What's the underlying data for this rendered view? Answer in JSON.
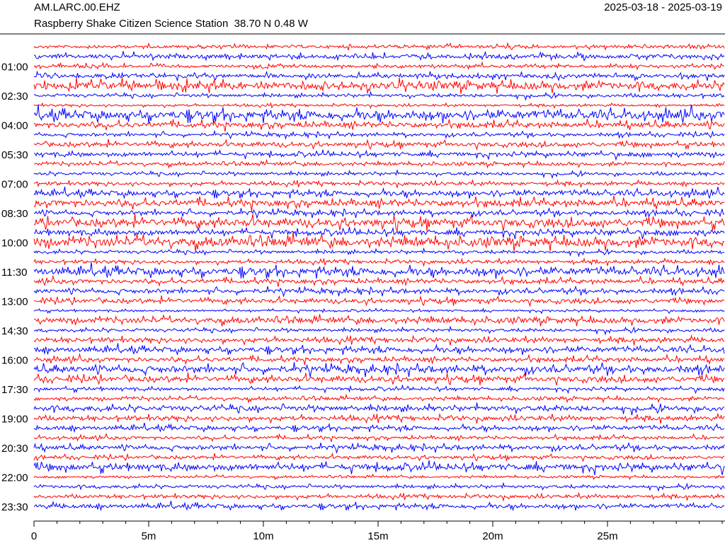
{
  "chart_data": {
    "type": "helicorder",
    "title": "AM.LARC.00.EHZ",
    "subtitle": "Raspberry Shake Citizen Science Station  38.70 N 0.48 W",
    "date_range": "2025-03-18 - 2025-03-19",
    "xlim": [
      0,
      30
    ],
    "xticks": [
      0,
      {
        "value": 5,
        "label": "5m"
      },
      {
        "value": 10,
        "label": "10m"
      },
      {
        "value": 15,
        "label": "15m"
      },
      {
        "value": 20,
        "label": "20m"
      },
      {
        "value": 25,
        "label": "25m"
      }
    ],
    "xminor_step": 1,
    "ylim": [
      0,
      1410
    ],
    "yticks": [
      {
        "value": 60,
        "label": "01:00"
      },
      {
        "value": 150,
        "label": "02:30"
      },
      {
        "value": 240,
        "label": "04:00"
      },
      {
        "value": 330,
        "label": "05:30"
      },
      {
        "value": 420,
        "label": "07:00"
      },
      {
        "value": 510,
        "label": "08:30"
      },
      {
        "value": 600,
        "label": "10:00"
      },
      {
        "value": 690,
        "label": "11:30"
      },
      {
        "value": 780,
        "label": "13:00"
      },
      {
        "value": 870,
        "label": "14:30"
      },
      {
        "value": 960,
        "label": "16:00"
      },
      {
        "value": 1050,
        "label": "17:30"
      },
      {
        "value": 1140,
        "label": "19:00"
      },
      {
        "value": 1230,
        "label": "20:30"
      },
      {
        "value": 1320,
        "label": "22:00"
      },
      {
        "value": 1410,
        "label": "23:30"
      }
    ],
    "colors": [
      "#ff0000",
      "#0000ff"
    ],
    "traces": {
      "start": [
        0,
        30,
        60,
        90,
        120,
        150,
        180,
        210,
        240,
        270,
        300,
        330,
        360,
        390,
        420,
        450,
        480,
        510,
        540,
        570,
        600,
        630,
        660,
        690,
        720,
        750,
        780,
        810,
        840,
        870,
        900,
        930,
        960,
        990,
        1020,
        1050,
        1080,
        1110,
        1140,
        1170,
        1200,
        1230,
        1260,
        1290,
        1320,
        1350,
        1380,
        1410
      ],
      "amplitude": [
        1.5,
        2,
        1.5,
        2,
        3.5,
        1.5,
        1,
        4,
        2.5,
        1.5,
        2,
        2,
        1.5,
        1.5,
        1.5,
        2.5,
        3,
        2,
        3.5,
        2.5,
        4,
        1.5,
        1.5,
        3.5,
        2,
        2,
        2,
        1,
        2.5,
        1.5,
        2,
        2.5,
        2,
        3,
        2.5,
        1.5,
        1.5,
        2.5,
        2,
        2,
        1.5,
        2,
        1.5,
        3,
        1,
        1.5,
        1.5,
        2
      ]
    }
  }
}
